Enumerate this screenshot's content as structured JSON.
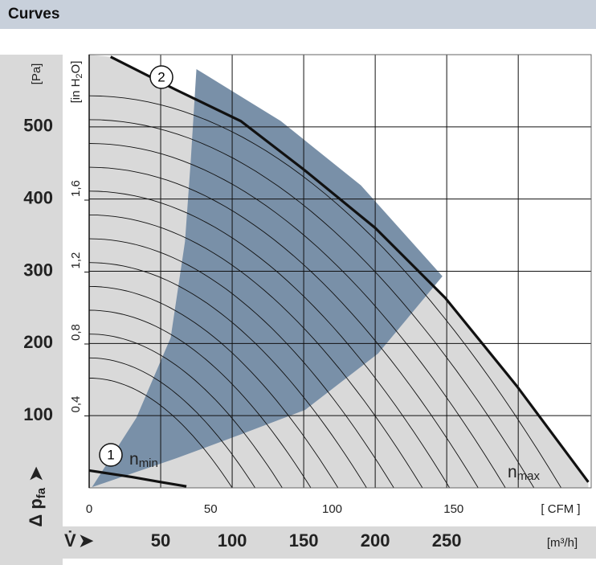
{
  "chart_data": {
    "type": "fan_curve",
    "title": "Curves",
    "y_unit": "[Pa]",
    "ylim": [
      0,
      600
    ],
    "yticks": [
      100,
      200,
      300,
      400,
      500
    ],
    "y2_unit": {
      "text": "[in H",
      "sub": "2",
      "end": "O]"
    },
    "y2lim": [
      0,
      2.409
    ],
    "y2ticks": [
      {
        "value": 0.4,
        "label": "0,4"
      },
      {
        "value": 0.8,
        "label": "0,8"
      },
      {
        "value": 1.2,
        "label": "1,2"
      },
      {
        "value": 1.6,
        "label": "1,6"
      }
    ],
    "y_label": {
      "text": "Δ p",
      "sub": "fa",
      "arrow": "➤"
    },
    "x_label": {
      "text": "V̇",
      "arrow": "➤"
    },
    "x_unit": "[m³/h]",
    "xlim": [
      0,
      351
    ],
    "xticks": [
      50,
      100,
      150,
      200,
      250,
      {
        "value": 300,
        "label": null
      }
    ],
    "x2_unit": "[ CFM ]",
    "x2lim": [
      0,
      206.6
    ],
    "x2ticks": [
      0,
      50,
      100,
      150
    ],
    "grid": true,
    "series": [
      {
        "marker": "2",
        "name": "n",
        "name_sub": "max",
        "color": "#111111",
        "x": [
          15,
          60,
          106,
          150,
          200,
          249,
          299,
          349
        ],
        "values": [
          597,
          552,
          508,
          441,
          360,
          263,
          141,
          8
        ]
      },
      {
        "marker": "1",
        "name": "n",
        "name_sub": "min",
        "color": "#111111",
        "x": [
          0,
          30,
          50,
          68
        ],
        "values": [
          24,
          15,
          8,
          2
        ]
      }
    ],
    "region": {
      "color": "#7990a8",
      "x": [
        75,
        134,
        190,
        247,
        202,
        151,
        106,
        61,
        2,
        33,
        57,
        67,
        71
      ],
      "values": [
        580,
        508,
        419,
        293,
        186,
        108,
        74,
        41,
        1,
        97,
        208,
        341,
        452
      ]
    },
    "system_lines": {
      "color": "#111111",
      "pa0": [
        543,
        510,
        477,
        444,
        411,
        378,
        345,
        312,
        279,
        246,
        213,
        180,
        152
      ],
      "q0": [
        330,
        311,
        291,
        272,
        252,
        233,
        213,
        194,
        174,
        155,
        135,
        116,
        100
      ]
    }
  }
}
